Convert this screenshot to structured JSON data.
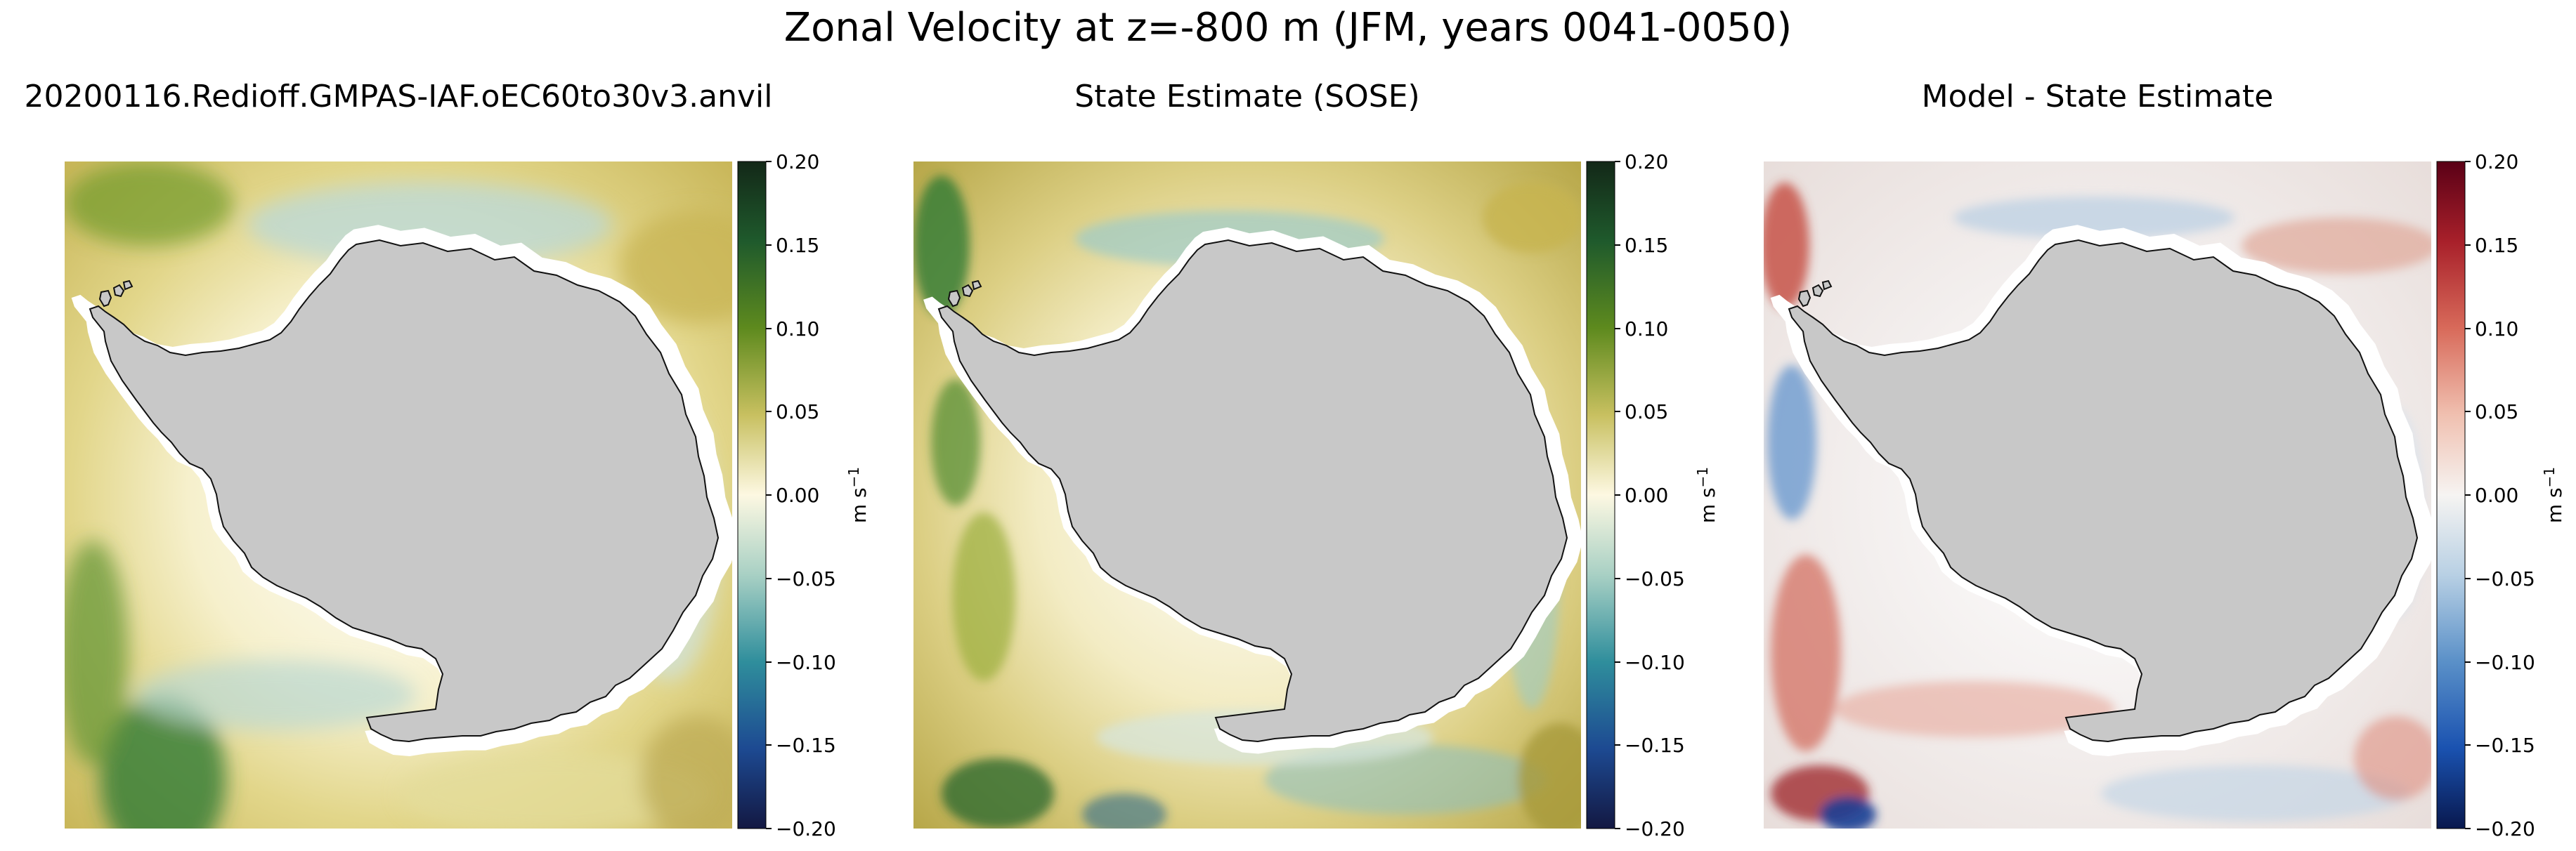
{
  "figure": {
    "suptitle": "Zonal Velocity at z=-800 m (JFM, years 0041-0050)"
  },
  "panels": [
    {
      "title": "20200116.Redioff.GMPAS-IAF.oEC60to30v3.anvil",
      "colormap": "speed-style",
      "colorbar": {
        "label": "m s$^{-1}$",
        "unit_text": "m s",
        "unit_sup": "−1",
        "ticks": [
          "0.20",
          "0.15",
          "0.10",
          "0.05",
          "0.00",
          "−0.05",
          "−0.10",
          "−0.15",
          "−0.20"
        ]
      }
    },
    {
      "title": "State Estimate (SOSE)",
      "colormap": "speed-style",
      "colorbar": {
        "label": "m s$^{-1}$",
        "unit_text": "m s",
        "unit_sup": "−1",
        "ticks": [
          "0.20",
          "0.15",
          "0.10",
          "0.05",
          "0.00",
          "−0.05",
          "−0.10",
          "−0.15",
          "−0.20"
        ]
      }
    },
    {
      "title": "Model - State Estimate",
      "colormap": "red-blue",
      "colorbar": {
        "label": "m s$^{-1}$",
        "unit_text": "m s",
        "unit_sup": "−1",
        "ticks": [
          "0.20",
          "0.15",
          "0.10",
          "0.05",
          "0.00",
          "−0.05",
          "−0.10",
          "−0.15",
          "−0.20"
        ]
      }
    }
  ],
  "colors": {
    "land": "#c8c8c8",
    "ice_shelf_white": "#ffffff",
    "speed_top": "#1a3a22",
    "speed_mid_high": "#7a9a1c",
    "speed_zero": "#fdf8e2",
    "speed_mid_low": "#3e9aa0",
    "speed_bottom": "#141a4a",
    "rb_top": "#6a0016",
    "rb_mid_high": "#d88a78",
    "rb_zero": "#f6f2f0",
    "rb_mid_low": "#7aa8d2",
    "rb_bottom": "#0a1e5e"
  },
  "chart_data": {
    "type": "heatmap",
    "title": "Zonal Velocity at z=-800 m (JFM, years 0041-0050)",
    "projection": "south polar stereographic",
    "colorbar_range": [
      -0.2,
      0.2
    ],
    "colorbar_ticks": [
      0.2,
      0.15,
      0.1,
      0.05,
      0.0,
      -0.05,
      -0.1,
      -0.15,
      -0.2
    ],
    "colorbar_label": "m s^-1",
    "panels": [
      "20200116.Redioff.GMPAS-IAF.oEC60to30v3.anvil",
      "State Estimate (SOSE)",
      "Model - State Estimate"
    ]
  }
}
